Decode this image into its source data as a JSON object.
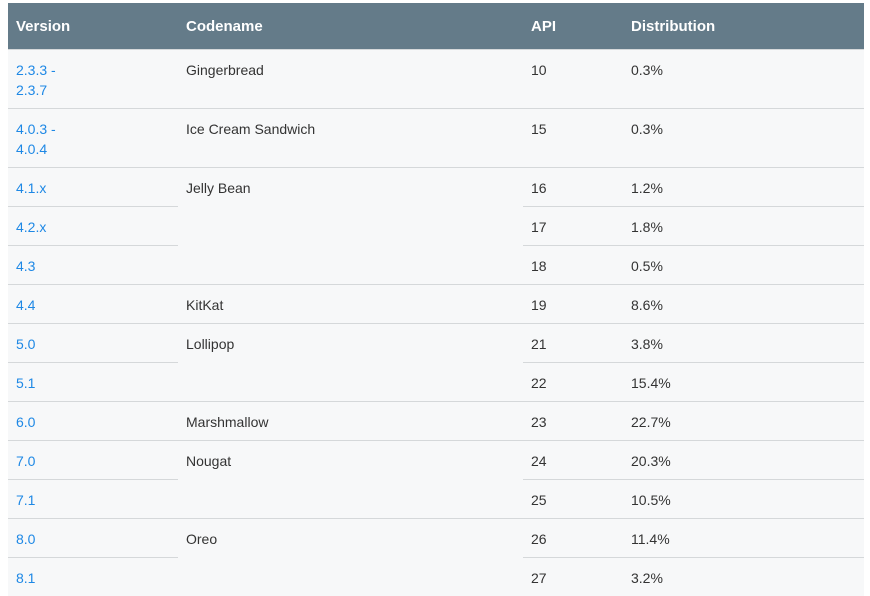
{
  "headers": {
    "version": "Version",
    "codename": "Codename",
    "api": "API",
    "distribution": "Distribution"
  },
  "rows": [
    {
      "version": "2.3.3 - 2.3.7",
      "codename": "Gingerbread",
      "api": "10",
      "distribution": "0.3%"
    },
    {
      "version": "4.0.3 - 4.0.4",
      "codename": "Ice Cream Sandwich",
      "api": "15",
      "distribution": "0.3%"
    },
    {
      "version": "4.1.x",
      "codename": "Jelly Bean",
      "api": "16",
      "distribution": "1.2%"
    },
    {
      "version": "4.2.x",
      "codename": "",
      "api": "17",
      "distribution": "1.8%"
    },
    {
      "version": "4.3",
      "codename": "",
      "api": "18",
      "distribution": "0.5%"
    },
    {
      "version": "4.4",
      "codename": "KitKat",
      "api": "19",
      "distribution": "8.6%"
    },
    {
      "version": "5.0",
      "codename": "Lollipop",
      "api": "21",
      "distribution": "3.8%"
    },
    {
      "version": "5.1",
      "codename": "",
      "api": "22",
      "distribution": "15.4%"
    },
    {
      "version": "6.0",
      "codename": "Marshmallow",
      "api": "23",
      "distribution": "22.7%"
    },
    {
      "version": "7.0",
      "codename": "Nougat",
      "api": "24",
      "distribution": "20.3%"
    },
    {
      "version": "7.1",
      "codename": "",
      "api": "25",
      "distribution": "10.5%"
    },
    {
      "version": "8.0",
      "codename": "Oreo",
      "api": "26",
      "distribution": "11.4%"
    },
    {
      "version": "8.1",
      "codename": "",
      "api": "27",
      "distribution": "3.2%"
    }
  ],
  "colors": {
    "header_bg": "#647b89",
    "link": "#1e88e5",
    "row_bg": "#f7f8f9",
    "divider": "#d5d8da"
  }
}
